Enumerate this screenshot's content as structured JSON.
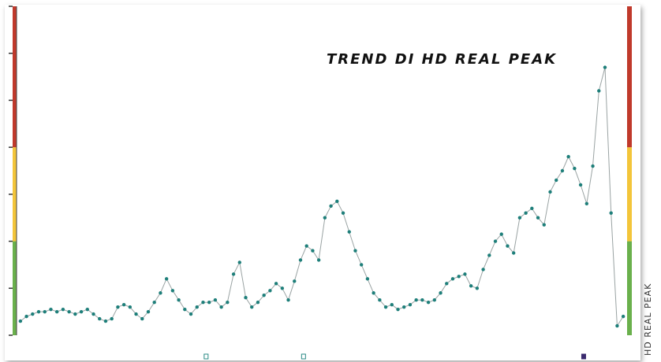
{
  "chart_title": "TREND DI HD REAL PEAK",
  "side_label": "HD REAL PEAK",
  "chart_data": {
    "type": "line",
    "title": "TREND DI HD REAL PEAK",
    "xlabel": "",
    "ylabel": "HD REAL PEAK",
    "ylim": [
      0,
      7
    ],
    "xlim": [
      0,
      100
    ],
    "grid": false,
    "y_ticks": [
      0,
      1,
      2,
      3,
      4,
      5,
      6,
      7
    ],
    "zones": [
      {
        "name": "green",
        "from": 0,
        "to": 2,
        "color": "#6ab04c"
      },
      {
        "name": "yellow",
        "from": 2,
        "to": 4,
        "color": "#f3c53a"
      },
      {
        "name": "red",
        "from": 4,
        "to": 7,
        "color": "#c0392b"
      }
    ],
    "series": [
      {
        "color": "#1e7f7a",
        "x": [
          0.5,
          1.5,
          2.5,
          3.5,
          4.5,
          5.5,
          6.5,
          7.5,
          8.5,
          9.5,
          10.5,
          11.5,
          12.5,
          13.5,
          14.5,
          15.5,
          16.5,
          17.5,
          18.5,
          19.5,
          20.5,
          21.5,
          22.5,
          23.5,
          24.5,
          25.5,
          26.5,
          27.5,
          28.5,
          29.5,
          30.5,
          31.5,
          32.5,
          33.5,
          34.5,
          35.5,
          36.5,
          37.5,
          38.5,
          39.5,
          40.5,
          41.5,
          42.5,
          43.5,
          44.5,
          45.5,
          46.5,
          47.5,
          48.5,
          49.5,
          50.5,
          51.5,
          52.5,
          53.5,
          54.5,
          55.5,
          56.5,
          57.5,
          58.5,
          59.5,
          60.5,
          61.5,
          62.5,
          63.5,
          64.5,
          65.5,
          66.5,
          67.5,
          68.5,
          69.5,
          70.5,
          71.5,
          72.5,
          73.5,
          74.5,
          75.5,
          76.5,
          77.5,
          78.5,
          79.5,
          80.5,
          81.5,
          82.5,
          83.5,
          84.5,
          85.5,
          86.5,
          87.5,
          88.5,
          89.5,
          90.5,
          91.5,
          92.5,
          93.5,
          94.5,
          95.5,
          96.5,
          97.5,
          98.5,
          99.5
        ],
        "values": [
          0.3,
          0.4,
          0.45,
          0.5,
          0.5,
          0.55,
          0.5,
          0.55,
          0.5,
          0.45,
          0.5,
          0.55,
          0.45,
          0.35,
          0.3,
          0.35,
          0.6,
          0.65,
          0.6,
          0.45,
          0.35,
          0.5,
          0.7,
          0.9,
          1.2,
          0.95,
          0.75,
          0.55,
          0.45,
          0.6,
          0.7,
          0.7,
          0.75,
          0.6,
          0.7,
          1.3,
          1.55,
          0.8,
          0.6,
          0.7,
          0.85,
          0.95,
          1.1,
          1.0,
          0.75,
          1.15,
          1.6,
          1.9,
          1.8,
          1.6,
          2.5,
          2.75,
          2.85,
          2.6,
          2.2,
          1.8,
          1.5,
          1.2,
          0.9,
          0.75,
          0.6,
          0.65,
          0.55,
          0.6,
          0.65,
          0.75,
          0.75,
          0.7,
          0.75,
          0.9,
          1.1,
          1.2,
          1.25,
          1.3,
          1.05,
          1.0,
          1.4,
          1.7,
          2.0,
          2.15,
          1.9,
          1.75,
          2.5,
          2.6,
          2.7,
          2.5,
          2.35,
          3.05,
          3.3,
          3.5,
          3.8,
          3.55,
          3.2,
          2.8,
          3.6,
          5.2,
          5.7,
          2.6,
          0.2,
          0.4
        ]
      }
    ],
    "markers_x": [
      31,
      47,
      93
    ]
  }
}
